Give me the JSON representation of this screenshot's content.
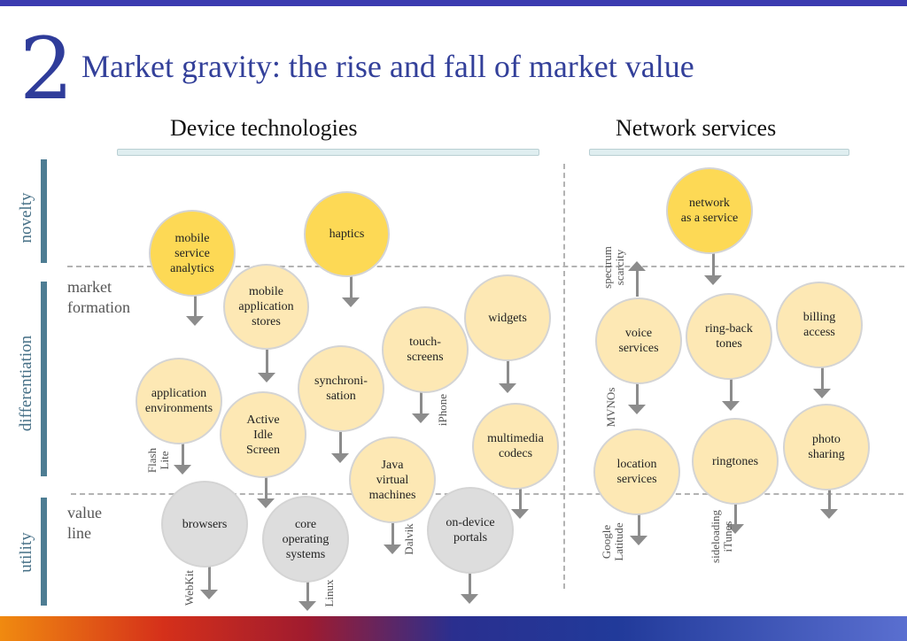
{
  "slide_number": "2",
  "title": "Market gravity: the rise and fall of market value",
  "columns": {
    "left": "Device technologies",
    "right": "Network services"
  },
  "rows": {
    "top": "novelty",
    "middle": "differentiation",
    "bottom": "utility"
  },
  "side_labels": {
    "market_formation": "market\nformation",
    "value_line": "value\nline"
  },
  "colors": {
    "yellow": "#fdd955",
    "light_yellow": "#fde8b4",
    "grey": "#dddddd",
    "title": "#33409a"
  },
  "bubbles": {
    "mobile_service_analytics": "mobile\nservice\nanalytics",
    "haptics": "haptics",
    "mobile_application_stores": "mobile\napplication\nstores",
    "widgets": "widgets",
    "touch_screens": "touch-\nscreens",
    "synchronisation": "synchroni-\nsation",
    "application_environments": "application\nenvironments",
    "active_idle_screen": "Active\nIdle\nScreen",
    "multimedia_codecs": "multimedia\ncodecs",
    "java_virtual_machines": "Java\nvirtual\nmachines",
    "browsers": "browsers",
    "core_operating_systems": "core\noperating\nsystems",
    "on_device_portals": "on-device\nportals",
    "network_as_a_service": "network\nas a service",
    "voice_services": "voice\nservices",
    "ring_back_tones": "ring-back\ntones",
    "billing_access": "billing\naccess",
    "location_services": "location\nservices",
    "ringtones": "ringtones",
    "photo_sharing": "photo\nsharing"
  },
  "arrow_labels": {
    "flash_lite": "Flash\nLite",
    "iphone": "iPhone",
    "dalvik": "Dalvik",
    "webkit": "WebKit",
    "linux": "Linux",
    "spectrum_scarcity": "spectrum\nscarcity",
    "mvnos": "MVNOs",
    "google_latitude": "Google\nLatitude",
    "sideloading_itunes": "sideloading\niTunes"
  }
}
